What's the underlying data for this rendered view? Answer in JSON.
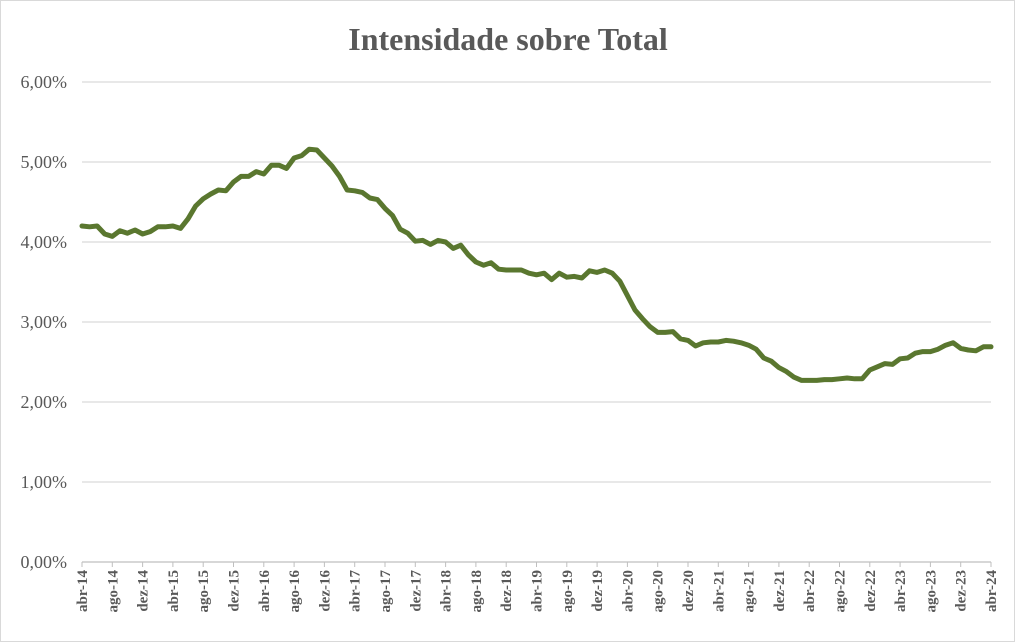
{
  "chart_data": {
    "type": "line",
    "title": "Intensidade sobre Total",
    "xlabel": "",
    "ylabel": "",
    "ylim": [
      0,
      0.06
    ],
    "y_ticks": [
      "0,00%",
      "1,00%",
      "2,00%",
      "3,00%",
      "4,00%",
      "5,00%",
      "6,00%"
    ],
    "grid": true,
    "legend": "none",
    "x_tick_labels": [
      "abr-14",
      "ago-14",
      "dez-14",
      "abr-15",
      "ago-15",
      "dez-15",
      "abr-16",
      "ago-16",
      "dez-16",
      "abr-17",
      "ago-17",
      "dez-17",
      "abr-18",
      "ago-18",
      "dez-18",
      "abr-19",
      "ago-19",
      "dez-19",
      "abr-20",
      "ago-20",
      "dez-20",
      "abr-21",
      "ago-21",
      "dez-21",
      "abr-22",
      "ago-22",
      "dez-22",
      "abr-23",
      "ago-23",
      "dez-23",
      "abr-24"
    ],
    "x_tick_every": 4,
    "series": [
      {
        "color": "#5a772f",
        "values": [
          4.2,
          4.19,
          4.2,
          4.1,
          4.07,
          4.14,
          4.11,
          4.15,
          4.1,
          4.13,
          4.19,
          4.19,
          4.2,
          4.17,
          4.29,
          4.45,
          4.54,
          4.6,
          4.65,
          4.64,
          4.75,
          4.82,
          4.82,
          4.88,
          4.85,
          4.96,
          4.96,
          4.92,
          5.05,
          5.08,
          5.16,
          5.15,
          5.05,
          4.95,
          4.82,
          4.65,
          4.64,
          4.62,
          4.55,
          4.53,
          4.42,
          4.33,
          4.16,
          4.11,
          4.01,
          4.02,
          3.97,
          4.02,
          4.0,
          3.92,
          3.96,
          3.84,
          3.75,
          3.71,
          3.74,
          3.66,
          3.65,
          3.65,
          3.65,
          3.61,
          3.59,
          3.61,
          3.53,
          3.61,
          3.56,
          3.57,
          3.55,
          3.64,
          3.62,
          3.65,
          3.61,
          3.51,
          3.33,
          3.15,
          3.04,
          2.94,
          2.87,
          2.87,
          2.88,
          2.79,
          2.77,
          2.7,
          2.74,
          2.75,
          2.75,
          2.77,
          2.76,
          2.74,
          2.71,
          2.66,
          2.55,
          2.51,
          2.43,
          2.38,
          2.31,
          2.27,
          2.27,
          2.27,
          2.28,
          2.28,
          2.29,
          2.3,
          2.29,
          2.29,
          2.4,
          2.44,
          2.48,
          2.47,
          2.54,
          2.55,
          2.61,
          2.63,
          2.63,
          2.66,
          2.71,
          2.74,
          2.67,
          2.65,
          2.64,
          2.69,
          2.69
        ]
      }
    ]
  }
}
